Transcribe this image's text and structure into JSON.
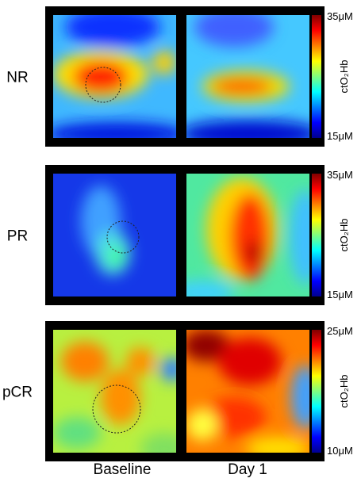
{
  "rows": [
    {
      "label": "NR",
      "colorbar": {
        "max": "35μM",
        "min": "15μM",
        "quantity": "ctO₂Hb"
      }
    },
    {
      "label": "PR",
      "colorbar": {
        "max": "35μM",
        "min": "15μM",
        "quantity": "ctO₂Hb"
      }
    },
    {
      "label": "pCR",
      "colorbar": {
        "max": "25μM",
        "min": "10μM",
        "quantity": "ctO₂Hb"
      }
    }
  ],
  "columns": [
    "Baseline",
    "Day 1"
  ]
}
